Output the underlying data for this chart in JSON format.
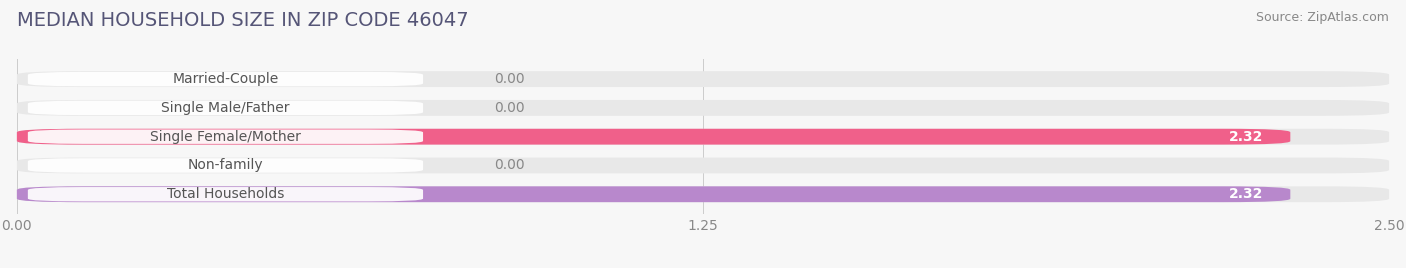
{
  "title": "MEDIAN HOUSEHOLD SIZE IN ZIP CODE 46047",
  "source": "Source: ZipAtlas.com",
  "categories": [
    "Married-Couple",
    "Single Male/Father",
    "Single Female/Mother",
    "Non-family",
    "Total Households"
  ],
  "values": [
    0.0,
    0.0,
    2.32,
    0.0,
    2.32
  ],
  "bar_colors": [
    "#6dcdd0",
    "#a8c0e8",
    "#f0608a",
    "#f8c898",
    "#b888cc"
  ],
  "xlim_max": 2.5,
  "xticks": [
    0.0,
    1.25,
    2.5
  ],
  "xtick_labels": [
    "0.00",
    "1.25",
    "2.50"
  ],
  "background_color": "#f7f7f7",
  "bar_bg_color": "#e8e8e8",
  "label_bg_color": "#ffffff",
  "title_fontsize": 14,
  "source_fontsize": 9,
  "label_fontsize": 10,
  "value_fontsize": 10,
  "tick_fontsize": 10,
  "bar_height": 0.55,
  "label_text_color": "#555555",
  "value_color_inside": "#ffffff",
  "value_color_outside": "#888888"
}
